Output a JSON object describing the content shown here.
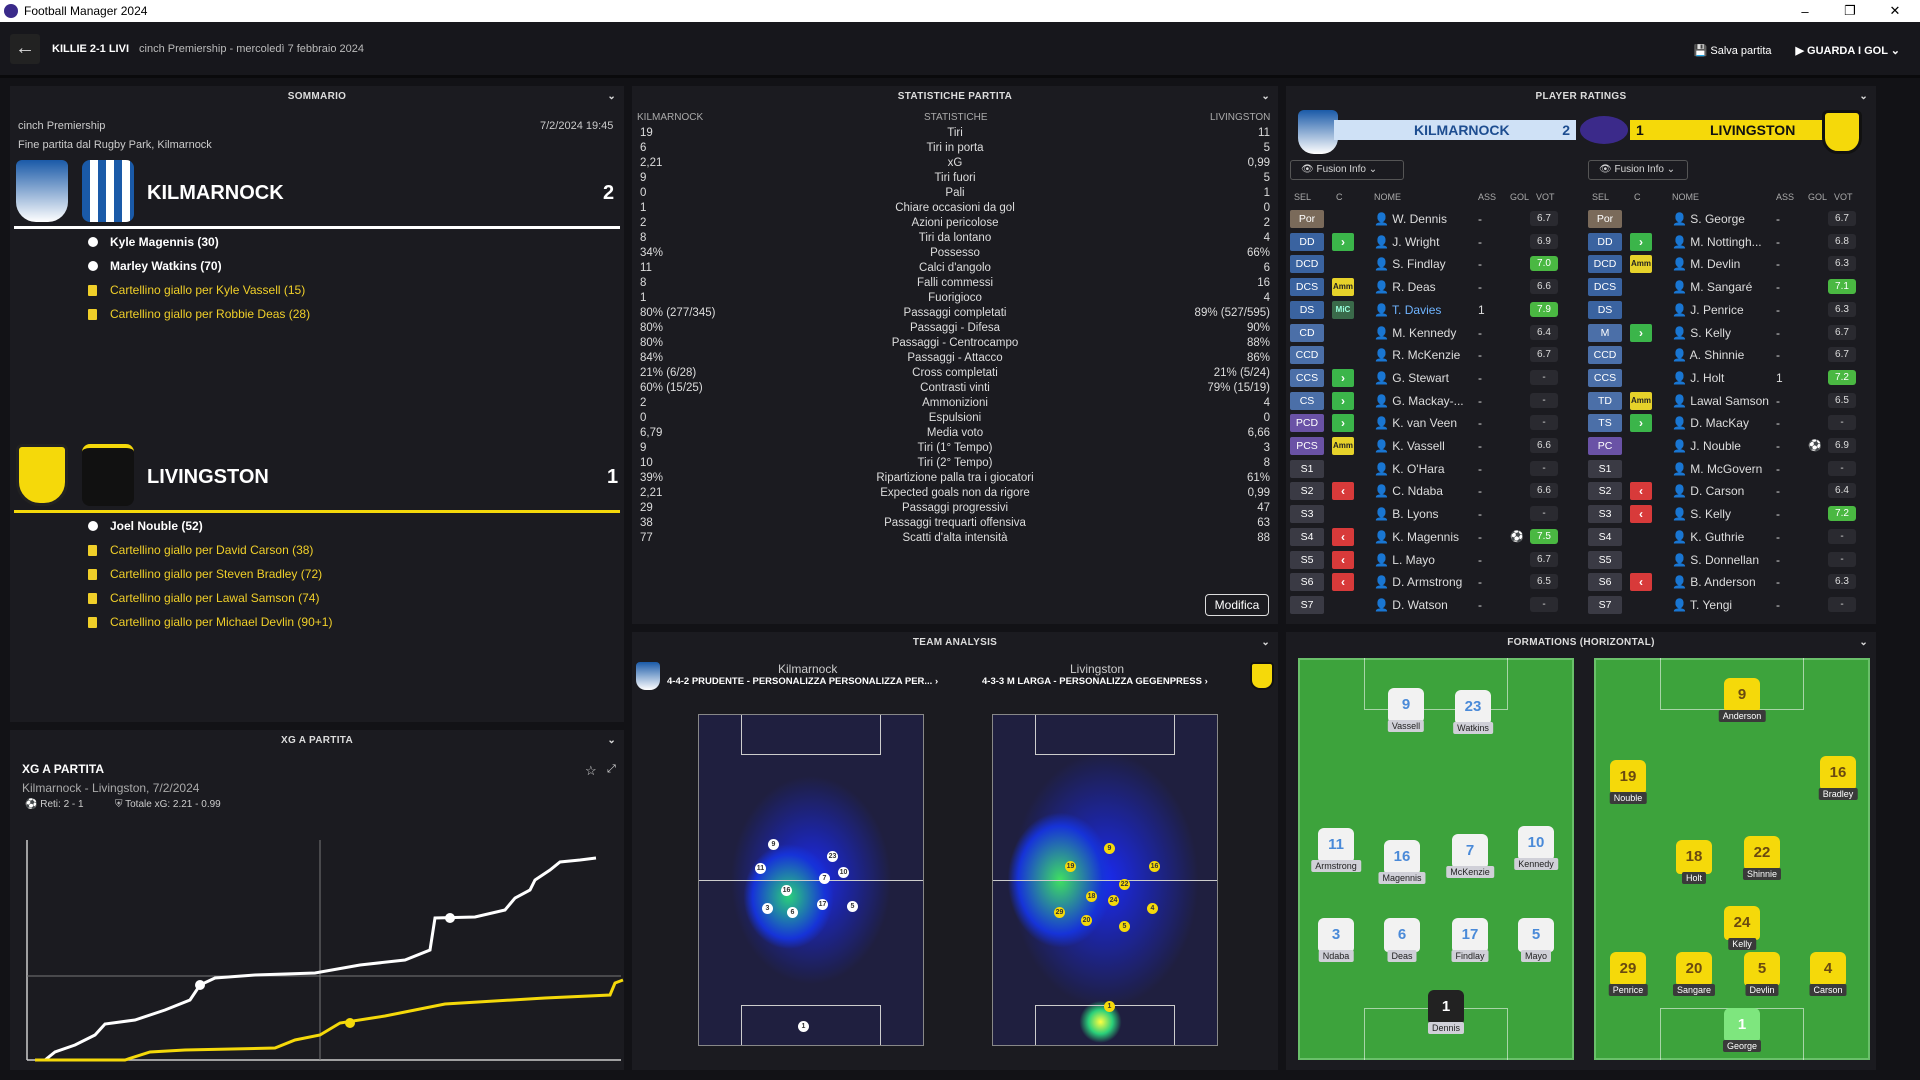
{
  "window": {
    "title": "Football Manager 2024",
    "min": "–",
    "max": "❐",
    "close": "✕"
  },
  "header": {
    "score": "KILLIE 2-1 LIVI",
    "competition": "cinch Premiership - mercoledì 7 febbraio 2024",
    "save": "Salva partita",
    "watch": "GUARDA I GOL",
    "save_icon": "floppy-icon",
    "watch_icon": "play-icon"
  },
  "summary": {
    "title": "SOMMARIO",
    "competition": "cinch Premiership",
    "datetime": "7/2/2024 19:45",
    "venue": "Fine partita dal Rugby Park, Kilmarnock",
    "home": {
      "name": "KILMARNOCK",
      "score": "2",
      "color": "#ffffff",
      "events": [
        {
          "type": "goal",
          "text": "Kyle Magennis (30)"
        },
        {
          "type": "goal",
          "text": "Marley Watkins (70)"
        },
        {
          "type": "card",
          "text": "Cartellino giallo per Kyle Vassell (15)"
        },
        {
          "type": "card",
          "text": "Cartellino giallo per Robbie Deas (28)"
        }
      ]
    },
    "away": {
      "name": "LIVINGSTON",
      "score": "1",
      "color": "#f5d90a",
      "events": [
        {
          "type": "goal",
          "text": "Joel Nouble (52)"
        },
        {
          "type": "card",
          "text": "Cartellino giallo per David Carson (38)"
        },
        {
          "type": "card",
          "text": "Cartellino giallo per Steven Bradley (72)"
        },
        {
          "type": "card",
          "text": "Cartellino giallo per Lawal Samson (74)"
        },
        {
          "type": "card",
          "text": "Cartellino giallo per Michael Devlin (90+1)"
        }
      ]
    }
  },
  "stats": {
    "title": "STATISTICHE PARTITA",
    "col_home": "KILMARNOCK",
    "col_mid": "STATISTICHE",
    "col_away": "LIVINGSTON",
    "button": "Modifica",
    "rows": [
      [
        "19",
        "Tiri",
        "11"
      ],
      [
        "6",
        "Tiri in porta",
        "5"
      ],
      [
        "2,21",
        "xG",
        "0,99"
      ],
      [
        "9",
        "Tiri fuori",
        "5"
      ],
      [
        "0",
        "Pali",
        "1"
      ],
      [
        "1",
        "Chiare occasioni da gol",
        "0"
      ],
      [
        "2",
        "Azioni pericolose",
        "2"
      ],
      [
        "8",
        "Tiri da lontano",
        "4"
      ],
      [
        "34%",
        "Possesso",
        "66%"
      ],
      [
        "11",
        "Calci d'angolo",
        "6"
      ],
      [
        "8",
        "Falli commessi",
        "16"
      ],
      [
        "1",
        "Fuorigioco",
        "4"
      ],
      [
        "80% (277/345)",
        "Passaggi completati",
        "89% (527/595)"
      ],
      [
        "80%",
        "Passaggi - Difesa",
        "90%"
      ],
      [
        "80%",
        "Passaggi - Centrocampo",
        "88%"
      ],
      [
        "84%",
        "Passaggi - Attacco",
        "86%"
      ],
      [
        "21% (6/28)",
        "Cross completati",
        "21% (5/24)"
      ],
      [
        "60% (15/25)",
        "Contrasti vinti",
        "79% (15/19)"
      ],
      [
        "2",
        "Ammonizioni",
        "4"
      ],
      [
        "0",
        "Espulsioni",
        "0"
      ],
      [
        "6,79",
        "Media voto",
        "6,66"
      ],
      [
        "9",
        "Tiri (1° Tempo)",
        "3"
      ],
      [
        "10",
        "Tiri (2° Tempo)",
        "8"
      ],
      [
        "39%",
        "Ripartizione palla tra i giocatori",
        "61%"
      ],
      [
        "2,21",
        "Expected goals non da rigore",
        "0,99"
      ],
      [
        "29",
        "Passaggi progressivi",
        "47"
      ],
      [
        "38",
        "Passaggi trequarti offensiva",
        "63"
      ],
      [
        "77",
        "Scatti d'alta intensità",
        "88"
      ]
    ]
  },
  "ratings": {
    "title": "PLAYER RATINGS",
    "home": "KILMARNOCK",
    "home_score": "2",
    "away": "LIVINGSTON",
    "away_score": "1",
    "fusion": "Fusion Info",
    "cols": [
      "SEL",
      "C",
      "NOME",
      "ASS",
      "GOL",
      "VOT"
    ],
    "home_players": [
      [
        "Por",
        "",
        "W. Dennis",
        "-",
        "",
        "6.7"
      ],
      [
        "DD",
        "in",
        "J. Wright",
        "-",
        "",
        "6.9"
      ],
      [
        "DCD",
        "",
        "S. Findlay",
        "-",
        "",
        "7.0"
      ],
      [
        "DCS",
        "Amm",
        "R. Deas",
        "-",
        "",
        "6.6"
      ],
      [
        "DS",
        "MiC",
        "T. Davies",
        "1",
        "",
        "7.9"
      ],
      [
        "CD",
        "",
        "M. Kennedy",
        "-",
        "",
        "6.4"
      ],
      [
        "CCD",
        "",
        "R. McKenzie",
        "-",
        "",
        "6.7"
      ],
      [
        "CCS",
        "in",
        "G. Stewart",
        "-",
        "",
        "-"
      ],
      [
        "CS",
        "in",
        "G. Mackay-...",
        "-",
        "",
        "-"
      ],
      [
        "PCD",
        "in",
        "K. van Veen",
        "-",
        "",
        "-"
      ],
      [
        "PCS",
        "Amm",
        "K. Vassell",
        "-",
        "",
        "6.6"
      ],
      [
        "S1",
        "",
        "K. O'Hara",
        "-",
        "",
        "-"
      ],
      [
        "S2",
        "out",
        "C. Ndaba",
        "-",
        "",
        "6.6"
      ],
      [
        "S3",
        "",
        "B. Lyons",
        "-",
        "",
        "-"
      ],
      [
        "S4",
        "out",
        "K. Magennis",
        "-",
        "⚽",
        "7.5"
      ],
      [
        "S5",
        "out",
        "L. Mayo",
        "-",
        "",
        "6.7"
      ],
      [
        "S6",
        "out",
        "D. Armstrong",
        "-",
        "",
        "6.5"
      ],
      [
        "S7",
        "",
        "D. Watson",
        "-",
        "",
        "-"
      ]
    ],
    "away_players": [
      [
        "Por",
        "",
        "S. George",
        "-",
        "",
        "6.7"
      ],
      [
        "DD",
        "in",
        "M. Nottingh...",
        "-",
        "",
        "6.8"
      ],
      [
        "DCD",
        "Amm",
        "M. Devlin",
        "-",
        "",
        "6.3"
      ],
      [
        "DCS",
        "",
        "M. Sangaré",
        "-",
        "",
        "7.1"
      ],
      [
        "DS",
        "",
        "J. Penrice",
        "-",
        "",
        "6.3"
      ],
      [
        "M",
        "in",
        "S. Kelly",
        "-",
        "",
        "6.7"
      ],
      [
        "CCD",
        "",
        "A. Shinnie",
        "-",
        "",
        "6.7"
      ],
      [
        "CCS",
        "",
        "J. Holt",
        "1",
        "",
        "7.2"
      ],
      [
        "TD",
        "Amm",
        "Lawal Samson",
        "-",
        "",
        "6.5"
      ],
      [
        "TS",
        "in",
        "D. MacKay",
        "-",
        "",
        "-"
      ],
      [
        "PC",
        "",
        "J. Nouble",
        "-",
        "⚽",
        "6.9"
      ],
      [
        "S1",
        "",
        "M. McGovern",
        "-",
        "",
        "-"
      ],
      [
        "S2",
        "out",
        "D. Carson",
        "-",
        "",
        "6.4"
      ],
      [
        "S3",
        "out",
        "S. Kelly",
        "-",
        "",
        "7.2"
      ],
      [
        "S4",
        "",
        "K. Guthrie",
        "-",
        "",
        "-"
      ],
      [
        "S5",
        "",
        "S. Donnellan",
        "-",
        "",
        "-"
      ],
      [
        "S6",
        "out",
        "B. Anderson",
        "-",
        "",
        "6.3"
      ],
      [
        "S7",
        "",
        "T. Yengi",
        "-",
        "",
        "-"
      ]
    ]
  },
  "xg": {
    "title": "XG A PARTITA",
    "label": "XG A PARTITA",
    "subtitle": "Kilmarnock - Livingston, 7/2/2024",
    "goals": "Reti: 2 - 1",
    "total": "Totale xG: 2.21 - 0.99"
  },
  "analysis": {
    "title": "TEAM ANALYSIS",
    "home": "Kilmarnock",
    "home_form": "4-4-2 PRUDENTE - PERSONALIZZA PERSONALIZZA PER... ›",
    "away": "Livingston",
    "away_form": "4-3-3 M LARGA - PERSONALIZZA GEGENPRESS ›"
  },
  "formations": {
    "title": "FORMATIONS (HORIZONTAL)",
    "home": [
      [
        "9",
        "Vassell"
      ],
      [
        "23",
        "Watkins"
      ],
      [
        "11",
        "Armstrong"
      ],
      [
        "16",
        "Magennis"
      ],
      [
        "7",
        "McKenzie"
      ],
      [
        "10",
        "Kennedy"
      ],
      [
        "3",
        "Ndaba"
      ],
      [
        "6",
        "Deas"
      ],
      [
        "17",
        "Findlay"
      ],
      [
        "5",
        "Mayo"
      ],
      [
        "1",
        "Dennis"
      ]
    ],
    "away": [
      [
        "9",
        "Anderson"
      ],
      [
        "19",
        "Nouble"
      ],
      [
        "16",
        "Bradley"
      ],
      [
        "18",
        "Holt"
      ],
      [
        "22",
        "Shinnie"
      ],
      [
        "24",
        "Kelly"
      ],
      [
        "29",
        "Penrice"
      ],
      [
        "20",
        "Sangare"
      ],
      [
        "5",
        "Devlin"
      ],
      [
        "4",
        "Carson"
      ],
      [
        "1",
        "George"
      ]
    ]
  }
}
